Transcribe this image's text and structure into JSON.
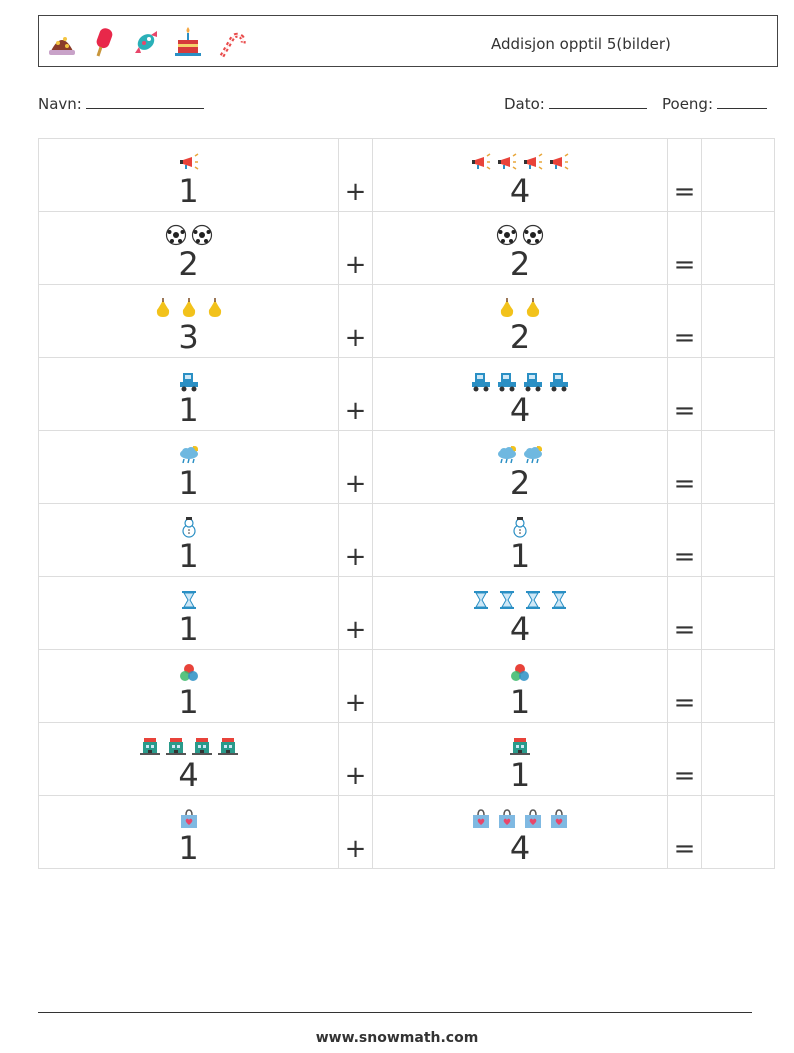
{
  "header": {
    "title": "Addisjon opptil 5(bilder)",
    "icons": [
      "chocolate-cake-icon",
      "popsicle-icon",
      "wrapped-candy-icon",
      "birthday-cake-icon",
      "candy-cane-icon"
    ]
  },
  "meta": {
    "name_label": "Navn:",
    "date_label": "Dato:",
    "score_label": "Poeng:"
  },
  "operators": {
    "plus": "+",
    "equals": "="
  },
  "problems": [
    {
      "left": 1,
      "right": 4,
      "icon": "megaphone-icon"
    },
    {
      "left": 2,
      "right": 2,
      "icon": "soccer-ball-icon"
    },
    {
      "left": 3,
      "right": 2,
      "icon": "pear-icon"
    },
    {
      "left": 1,
      "right": 4,
      "icon": "tractor-icon"
    },
    {
      "left": 1,
      "right": 2,
      "icon": "rain-cloud-icon"
    },
    {
      "left": 1,
      "right": 1,
      "icon": "snowman-icon"
    },
    {
      "left": 1,
      "right": 4,
      "icon": "hourglass-icon"
    },
    {
      "left": 1,
      "right": 1,
      "icon": "color-circles-icon"
    },
    {
      "left": 4,
      "right": 1,
      "icon": "building-icon"
    },
    {
      "left": 1,
      "right": 4,
      "icon": "shopping-bag-icon"
    }
  ],
  "footer": "www.snowmath.com"
}
